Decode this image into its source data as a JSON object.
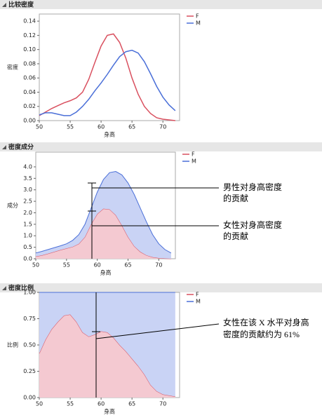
{
  "chart_data": [
    {
      "type": "line",
      "title": "比较密度",
      "xlabel": "身高",
      "ylabel": "密度",
      "x": [
        50,
        51,
        52,
        53,
        54,
        55,
        56,
        57,
        58,
        59,
        60,
        61,
        62,
        63,
        64,
        65,
        66,
        67,
        68,
        69,
        70,
        71,
        72
      ],
      "series": [
        {
          "name": "F",
          "color": "#d9505f",
          "values": [
            0.007,
            0.012,
            0.017,
            0.021,
            0.025,
            0.028,
            0.032,
            0.04,
            0.058,
            0.082,
            0.105,
            0.12,
            0.122,
            0.11,
            0.088,
            0.06,
            0.037,
            0.02,
            0.01,
            0.004,
            0.002,
            0.001,
            0
          ]
        },
        {
          "name": "M",
          "color": "#4a6fd8",
          "values": [
            0.008,
            0.011,
            0.011,
            0.009,
            0.007,
            0.007,
            0.012,
            0.02,
            0.03,
            0.042,
            0.053,
            0.065,
            0.078,
            0.09,
            0.097,
            0.099,
            0.095,
            0.083,
            0.066,
            0.048,
            0.033,
            0.022,
            0.014
          ]
        }
      ],
      "xlim": [
        50,
        72.7
      ],
      "xticks": [
        50,
        55,
        60,
        65,
        70
      ],
      "ylim": [
        0,
        0.15
      ],
      "yticks": [
        {
          "value": 0,
          "label": "0.00"
        },
        {
          "value": 0.02,
          "label": "0.02"
        },
        {
          "value": 0.04,
          "label": "0.04"
        },
        {
          "value": 0.06,
          "label": "0.06"
        },
        {
          "value": 0.08,
          "label": "0.08"
        },
        {
          "value": 0.1,
          "label": "0.10"
        },
        {
          "value": 0.12,
          "label": "0.12"
        },
        {
          "value": 0.14,
          "label": "0.14"
        }
      ]
    },
    {
      "type": "area",
      "title": "密度成分",
      "xlabel": "身高",
      "ylabel": "成分",
      "x": [
        50,
        51,
        52,
        53,
        54,
        55,
        56,
        57,
        58,
        59,
        60,
        61,
        62,
        63,
        64,
        65,
        66,
        67,
        68,
        69,
        70,
        71,
        72
      ],
      "series": [
        {
          "name": "F",
          "color": "#d9505f",
          "fill": "#f4c9d1",
          "values": [
            0.1,
            0.15,
            0.22,
            0.3,
            0.38,
            0.45,
            0.52,
            0.65,
            0.95,
            1.5,
            1.95,
            2.18,
            2.15,
            1.9,
            1.45,
            0.95,
            0.55,
            0.3,
            0.15,
            0.07,
            0.03,
            0.01,
            0
          ]
        },
        {
          "name": "M",
          "color": "#4a6fd8",
          "fill": "#c9d3f5",
          "values": [
            0.15,
            0.17,
            0.18,
            0.18,
            0.18,
            0.2,
            0.28,
            0.4,
            0.55,
            0.7,
            0.95,
            1.27,
            1.6,
            1.9,
            2.2,
            2.35,
            2.25,
            1.9,
            1.45,
            0.98,
            0.62,
            0.39,
            0.25
          ]
        }
      ],
      "xlim": [
        50,
        72.7
      ],
      "xticks": [
        50,
        55,
        60,
        65,
        70
      ],
      "ylim": [
        0,
        4.64
      ],
      "yticks": [
        {
          "value": 0,
          "label": "0.0"
        },
        {
          "value": 0.5,
          "label": "0.5"
        },
        {
          "value": 1,
          "label": "1.0"
        },
        {
          "value": 1.5,
          "label": "1.5"
        },
        {
          "value": 2,
          "label": "2.0"
        },
        {
          "value": 2.5,
          "label": "2.5"
        },
        {
          "value": 3,
          "label": "3.0"
        },
        {
          "value": 3.5,
          "label": "3.5"
        },
        {
          "value": 4,
          "label": "4.0"
        }
      ],
      "annotations": [
        [
          "男性对身高密度",
          "的贡献"
        ],
        [
          "女性对身高密度",
          "的贡献"
        ]
      ]
    },
    {
      "type": "area",
      "title": "密度比例",
      "xlabel": "身高",
      "ylabel": "比例",
      "x": [
        50,
        51,
        52,
        53,
        54,
        55,
        56,
        57,
        58,
        59,
        60,
        61,
        62,
        63,
        64,
        65,
        66,
        67,
        68,
        69,
        70,
        71,
        72
      ],
      "series": [
        {
          "name": "F",
          "color": "#d9505f",
          "fill": "#f4c9d1",
          "values": [
            0.42,
            0.55,
            0.65,
            0.72,
            0.78,
            0.79,
            0.72,
            0.62,
            0.58,
            0.6,
            0.63,
            0.62,
            0.57,
            0.5,
            0.44,
            0.37,
            0.3,
            0.22,
            0.12,
            0.06,
            0.03,
            0.02,
            0.01
          ]
        },
        {
          "name": "M",
          "color": "#4a6fd8",
          "fill": "#c9d3f5",
          "values": [
            0.58,
            0.45,
            0.35,
            0.28,
            0.22,
            0.21,
            0.28,
            0.38,
            0.42,
            0.4,
            0.37,
            0.38,
            0.43,
            0.5,
            0.56,
            0.63,
            0.7,
            0.78,
            0.88,
            0.94,
            0.97,
            0.98,
            0.99
          ]
        }
      ],
      "xlim": [
        50,
        72.7
      ],
      "xticks": [
        50,
        55,
        60,
        65,
        70
      ],
      "ylim": [
        0,
        1
      ],
      "yticks": [
        {
          "value": 0,
          "label": "0.00"
        },
        {
          "value": 0.25,
          "label": "0.25"
        },
        {
          "value": 0.5,
          "label": "0.50"
        },
        {
          "value": 0.75,
          "label": "0.75"
        },
        {
          "value": 1,
          "label": "1.00"
        }
      ],
      "annotations": [
        [
          "女性在该 X 水平对身高",
          "密度的贡献约为 61%"
        ]
      ]
    }
  ]
}
